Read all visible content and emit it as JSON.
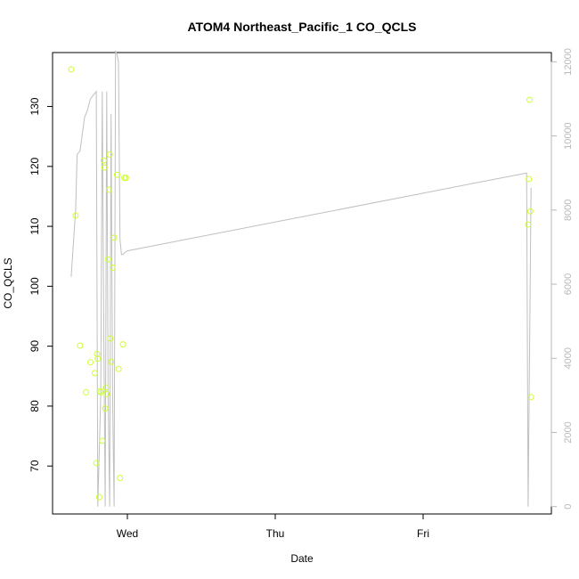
{
  "chart_data": {
    "type": "scatter",
    "title": "ATOM4 Northeast_Pacific_1 CO_QCLS",
    "xlabel": "Date",
    "ylabel": "CO_QCLS",
    "x_ticks": [
      "Wed",
      "Thu",
      "Fri"
    ],
    "y_ticks": [
      70,
      80,
      90,
      100,
      110,
      120,
      130
    ],
    "y2_ticks": [
      0,
      2000,
      4000,
      6000,
      8000,
      10000,
      12000
    ],
    "ylim": [
      62,
      139
    ],
    "y2lim": [
      -200,
      12250
    ],
    "xlim_days": [
      -0.43,
      2.75
    ],
    "colors": {
      "points": "#ccff33",
      "line": "#bfbfbf",
      "axis": "#000000",
      "axis_right": "#b8b8b8"
    },
    "series": [
      {
        "type": "scatter",
        "x_days": [
          -0.38,
          -0.35,
          -0.32,
          -0.28,
          -0.25,
          -0.22,
          -0.21,
          -0.205,
          -0.2,
          -0.19,
          -0.185,
          -0.18,
          -0.17,
          -0.16,
          -0.155,
          -0.15,
          -0.145,
          -0.14,
          -0.13,
          -0.125,
          -0.12,
          -0.115,
          -0.11,
          -0.1,
          -0.09,
          -0.07,
          -0.06,
          -0.05,
          -0.03,
          -0.02,
          -0.01,
          2.71,
          2.715,
          2.72,
          2.725,
          2.73
        ],
        "y": [
          136.2,
          111.8,
          90.1,
          82.3,
          87.3,
          85.5,
          70.5,
          88.7,
          87.9,
          64.8,
          82.5,
          82.3,
          74.2,
          121.0,
          119.8,
          79.6,
          83.1,
          82.0,
          104.5,
          116.1,
          122.0,
          91.3,
          87.4,
          103.1,
          108.1,
          118.6,
          86.2,
          68.0,
          90.3,
          118.1,
          118.1,
          110.3,
          117.9,
          131.1,
          112.5,
          81.5
        ]
      },
      {
        "type": "line",
        "axis": "right",
        "x_days": [
          -0.38,
          -0.35,
          -0.34,
          -0.32,
          -0.29,
          -0.27,
          -0.25,
          -0.21,
          -0.2,
          -0.18,
          -0.17,
          -0.16,
          -0.15,
          -0.14,
          -0.13,
          -0.12,
          -0.11,
          -0.1,
          -0.09,
          -0.08,
          -0.07,
          -0.06,
          -0.05,
          -0.04,
          -0.03,
          -0.02,
          0.0,
          2.7,
          2.71,
          2.73
        ],
        "y": [
          6200,
          8000,
          9500,
          9600,
          10500,
          10700,
          11000,
          11200,
          0,
          3000,
          11200,
          5000,
          0,
          11200,
          3000,
          0,
          10600,
          3000,
          0,
          12300,
          12200,
          12000,
          7200,
          6800,
          6800,
          6850,
          6900,
          9000,
          0,
          8600
        ]
      }
    ]
  }
}
